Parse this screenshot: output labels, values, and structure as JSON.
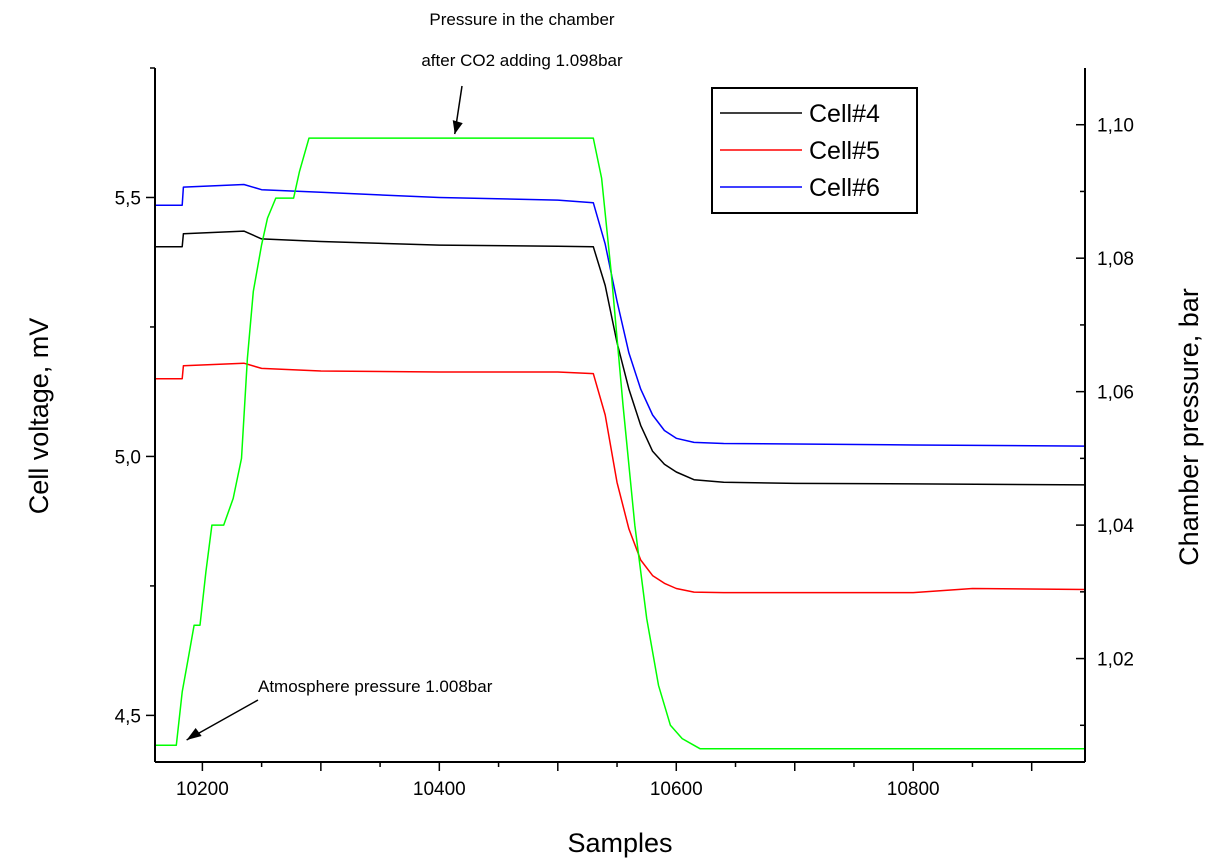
{
  "chart_data": {
    "type": "line",
    "xlabel": "Samples",
    "ylabel": "Cell voltage, mV",
    "y2label": "Chamber pressure, bar",
    "xlim": [
      10160,
      10945
    ],
    "ylim": [
      4.41,
      5.75
    ],
    "y2lim": [
      1.0045,
      1.1085
    ],
    "x_ticks": [
      10200,
      10400,
      10600,
      10800
    ],
    "x_tick_labels": [
      "10200",
      "10400",
      "10600",
      "10800"
    ],
    "y_ticks": [
      4.5,
      5.0,
      5.5
    ],
    "y_tick_labels": [
      "4,5",
      "5,0",
      "5,5"
    ],
    "y2_ticks": [
      1.02,
      1.04,
      1.06,
      1.08,
      1.1
    ],
    "y2_tick_labels": [
      "1,02",
      "1,04",
      "1,06",
      "1,08",
      "1,10"
    ],
    "grid": false,
    "legend_position": "top-right",
    "series": [
      {
        "name": "Cell#4",
        "color": "#000000",
        "axis": "left",
        "x": [
          10160,
          10183,
          10184,
          10235,
          10250,
          10300,
          10400,
          10500,
          10530,
          10540,
          10550,
          10560,
          10570,
          10580,
          10590,
          10600,
          10615,
          10640,
          10700,
          10800,
          10945
        ],
        "y": [
          5.405,
          5.405,
          5.43,
          5.435,
          5.42,
          5.415,
          5.408,
          5.406,
          5.405,
          5.33,
          5.22,
          5.13,
          5.06,
          5.01,
          4.985,
          4.97,
          4.955,
          4.95,
          4.948,
          4.947,
          4.945
        ]
      },
      {
        "name": "Cell#5",
        "color": "#ff0000",
        "axis": "left",
        "x": [
          10160,
          10183,
          10184,
          10235,
          10250,
          10300,
          10400,
          10500,
          10530,
          10540,
          10550,
          10560,
          10570,
          10580,
          10590,
          10600,
          10615,
          10640,
          10700,
          10800,
          10850,
          10945
        ],
        "y": [
          5.15,
          5.15,
          5.175,
          5.18,
          5.17,
          5.165,
          5.163,
          5.163,
          5.16,
          5.08,
          4.95,
          4.86,
          4.8,
          4.77,
          4.755,
          4.745,
          4.738,
          4.737,
          4.737,
          4.737,
          4.745,
          4.743
        ]
      },
      {
        "name": "Cell#6",
        "color": "#0000ff",
        "axis": "left",
        "x": [
          10160,
          10183,
          10184,
          10235,
          10250,
          10300,
          10400,
          10500,
          10530,
          10540,
          10550,
          10560,
          10570,
          10580,
          10590,
          10600,
          10615,
          10640,
          10700,
          10800,
          10945
        ],
        "y": [
          5.485,
          5.485,
          5.52,
          5.525,
          5.515,
          5.51,
          5.5,
          5.495,
          5.49,
          5.41,
          5.3,
          5.2,
          5.13,
          5.08,
          5.05,
          5.035,
          5.027,
          5.025,
          5.024,
          5.022,
          5.02
        ]
      },
      {
        "name": "",
        "color": "#00ff00",
        "axis": "right",
        "x": [
          10160,
          10178,
          10183,
          10188,
          10193,
          10198,
          10203,
          10208,
          10218,
          10226,
          10233,
          10238,
          10243,
          10250,
          10255,
          10262,
          10270,
          10277,
          10282,
          10290,
          10300,
          10400,
          10500,
          10530,
          10537,
          10545,
          10555,
          10565,
          10575,
          10585,
          10595,
          10605,
          10615,
          10620,
          10625,
          10945
        ],
        "y": [
          1.007,
          1.007,
          1.015,
          1.02,
          1.025,
          1.025,
          1.033,
          1.04,
          1.04,
          1.044,
          1.05,
          1.065,
          1.075,
          1.082,
          1.086,
          1.089,
          1.089,
          1.089,
          1.093,
          1.098,
          1.098,
          1.098,
          1.098,
          1.098,
          1.092,
          1.078,
          1.058,
          1.04,
          1.026,
          1.016,
          1.01,
          1.008,
          1.007,
          1.0065,
          1.0065,
          1.0065
        ]
      }
    ],
    "annotations": [
      {
        "lines": [
          "Pressure in the chamber",
          "after CO2 adding 1.098bar"
        ],
        "target_x": 10413,
        "target_y2": 1.098
      },
      {
        "lines": [
          "Atmosphere pressure 1.008bar"
        ],
        "target_x": 10185,
        "target_y2": 1.0075
      }
    ]
  }
}
